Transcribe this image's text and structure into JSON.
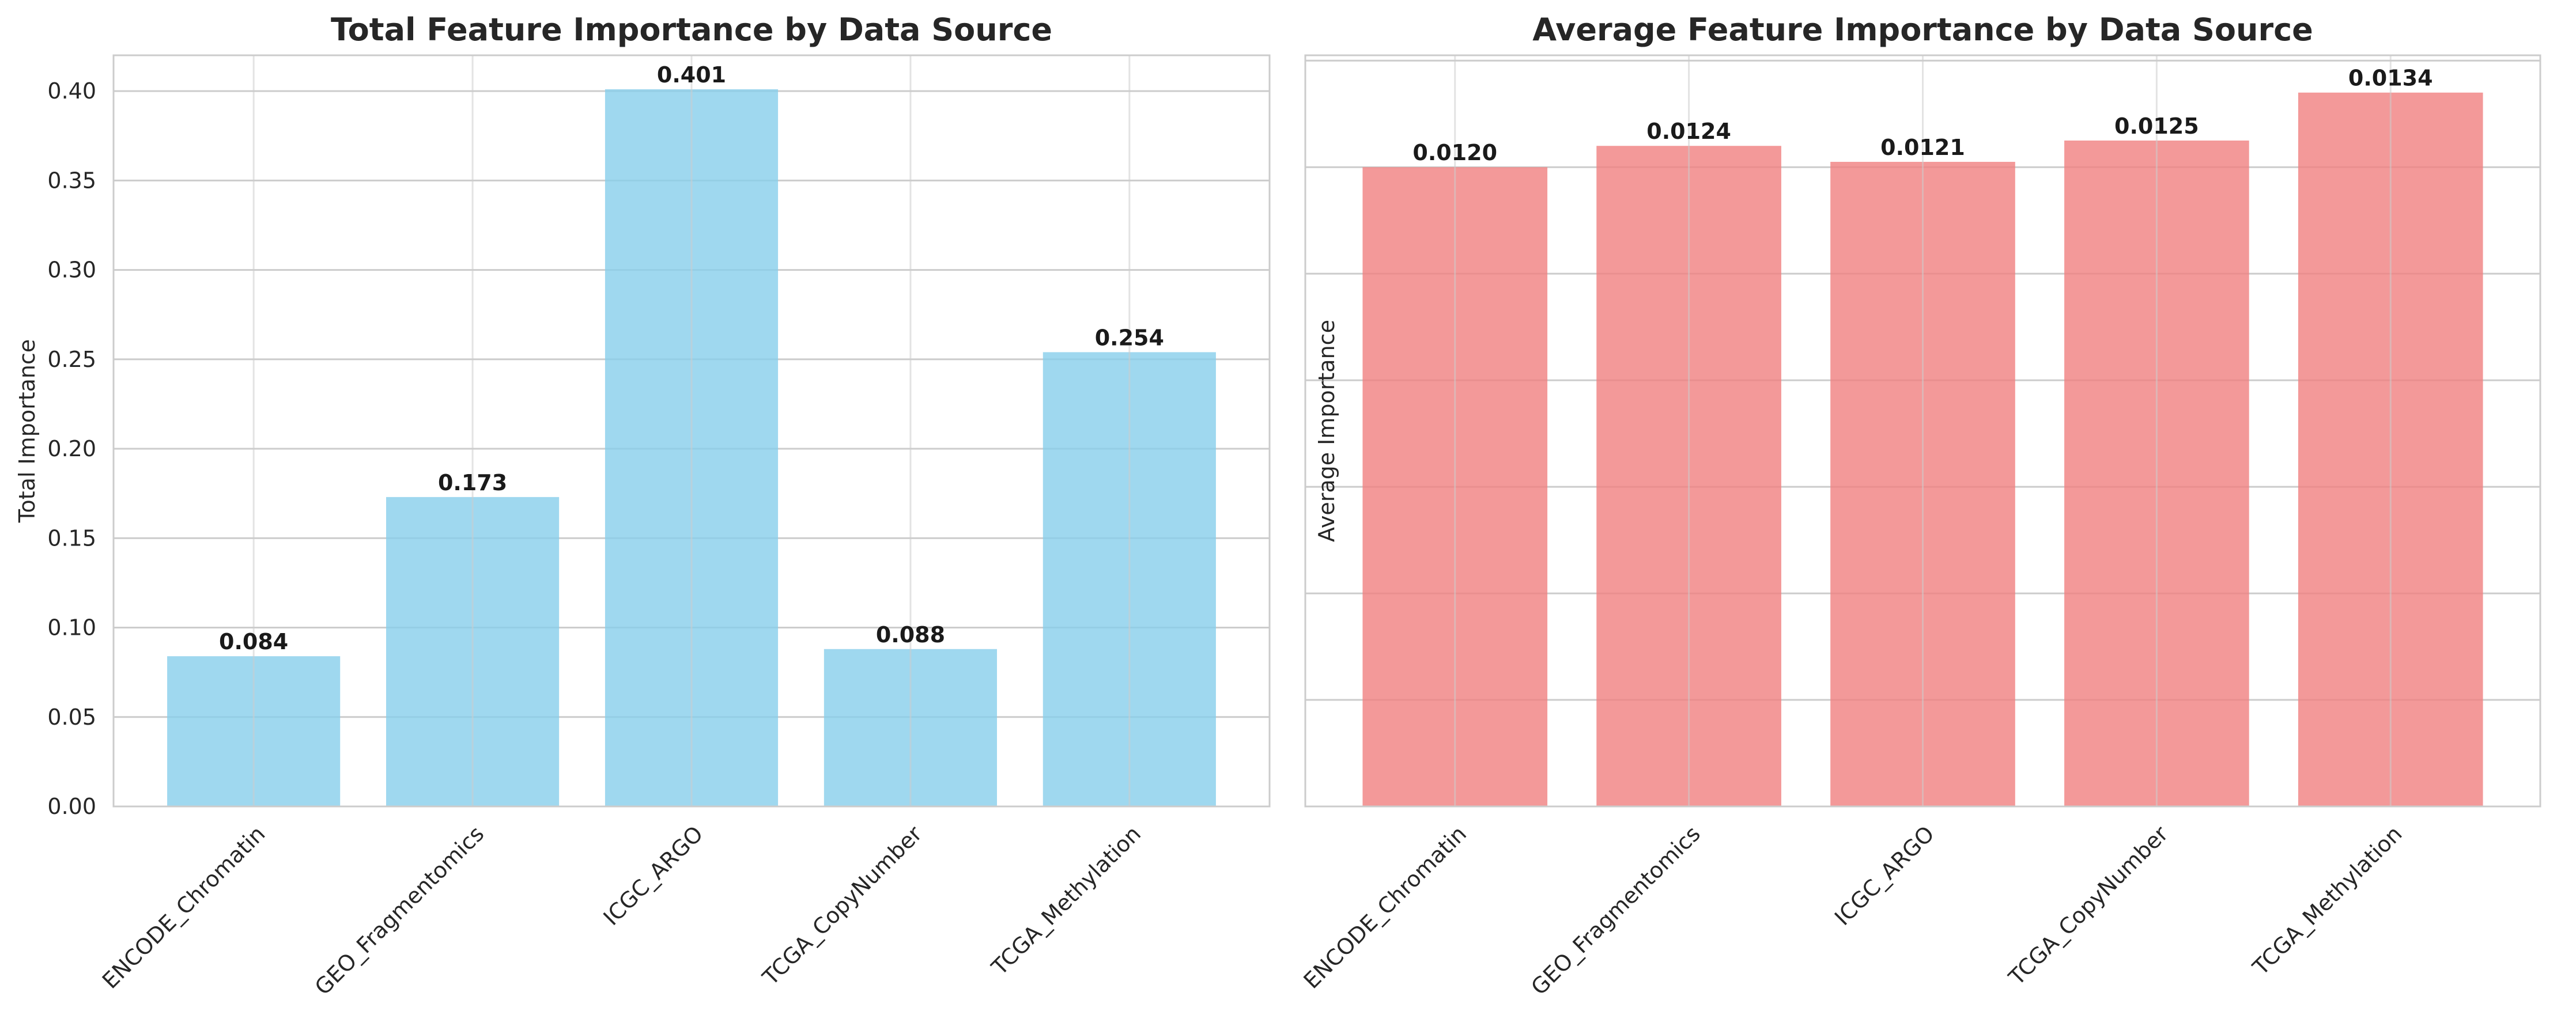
{
  "chart_data": [
    {
      "type": "bar",
      "title": "Total Feature Importance by Data Source",
      "xlabel": "",
      "ylabel": "Total Importance",
      "categories": [
        "ENCODE_Chromatin",
        "GEO_Fragmentomics",
        "ICGC_ARGO",
        "TCGA_CopyNumber",
        "TCGA_Methylation"
      ],
      "values": [
        0.084,
        0.173,
        0.401,
        0.088,
        0.254
      ],
      "data_labels": [
        "0.084",
        "0.173",
        "0.401",
        "0.088",
        "0.254"
      ],
      "ylim": [
        0,
        0.42
      ],
      "yticks": [
        0.0,
        0.05,
        0.1,
        0.15,
        0.2,
        0.25,
        0.3,
        0.35,
        0.4
      ],
      "ytick_labels": [
        "0.00",
        "0.05",
        "0.10",
        "0.15",
        "0.20",
        "0.25",
        "0.30",
        "0.35",
        "0.40"
      ],
      "color": "#87CEEB",
      "grid": true
    },
    {
      "type": "bar",
      "title": "Average Feature Importance by Data Source",
      "xlabel": "",
      "ylabel": "Average Importance",
      "categories": [
        "ENCODE_Chromatin",
        "GEO_Fragmentomics",
        "ICGC_ARGO",
        "TCGA_CopyNumber",
        "TCGA_Methylation"
      ],
      "values": [
        0.012,
        0.0124,
        0.0121,
        0.0125,
        0.0134
      ],
      "data_labels": [
        "0.0120",
        "0.0124",
        "0.0121",
        "0.0125",
        "0.0134"
      ],
      "ylim": [
        0,
        0.0141
      ],
      "yticks": [
        0.0,
        0.002,
        0.004,
        0.006,
        0.008,
        0.01,
        0.012,
        0.014
      ],
      "ytick_labels": [
        "0.000",
        "0.002",
        "0.004",
        "0.006",
        "0.008",
        "0.010",
        "0.012",
        "0.014"
      ],
      "color": "#F08080",
      "grid": true
    }
  ]
}
